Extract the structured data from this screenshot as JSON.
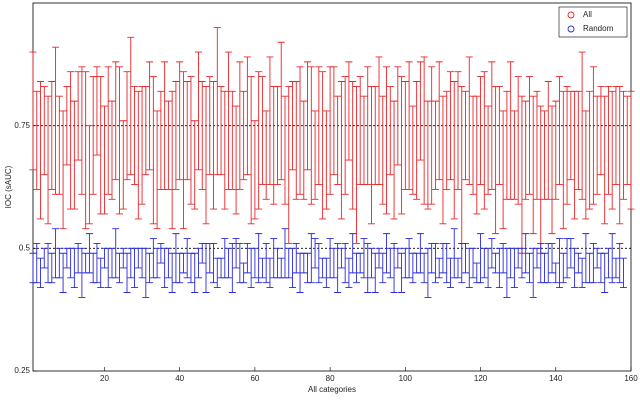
{
  "chart_data": {
    "type": "errorbar",
    "xlabel": "All categories",
    "ylabel": "IOC (sAUC)",
    "xlim": [
      1,
      160
    ],
    "ylim": [
      0.25,
      1
    ],
    "xticks": [
      20,
      40,
      60,
      80,
      100,
      120,
      140,
      160
    ],
    "yticks": [
      0.25,
      0.5,
      0.75
    ],
    "hlines": [
      0.5,
      0.75
    ],
    "legend": "northeast",
    "series": [
      {
        "name": "All",
        "color": "#e8262a",
        "values": [
          0.78,
          0.72,
          0.7,
          0.74,
          0.68,
          0.73,
          0.76,
          0.71,
          0.66,
          0.75,
          0.72,
          0.69,
          0.77,
          0.74,
          0.7,
          0.65,
          0.73,
          0.78,
          0.71,
          0.68,
          0.74,
          0.7,
          0.76,
          0.72,
          0.67,
          0.75,
          0.79,
          0.73,
          0.69,
          0.71,
          0.74,
          0.77,
          0.7,
          0.66,
          0.72,
          0.75,
          0.71,
          0.68,
          0.73,
          0.76,
          0.7,
          0.74,
          0.72,
          0.67,
          0.78,
          0.73,
          0.69,
          0.75,
          0.71,
          0.8,
          0.74,
          0.7,
          0.76,
          0.72,
          0.68,
          0.75,
          0.73,
          0.77,
          0.7,
          0.66,
          0.72,
          0.74,
          0.69,
          0.76,
          0.71,
          0.73,
          0.78,
          0.7,
          0.67,
          0.75,
          0.72,
          0.74,
          0.7,
          0.77,
          0.73,
          0.69,
          0.75,
          0.71,
          0.68,
          0.74,
          0.76,
          0.72,
          0.7,
          0.73,
          0.78,
          0.71,
          0.67,
          0.74,
          0.72,
          0.75,
          0.69,
          0.73,
          0.76,
          0.7,
          0.72,
          0.74,
          0.68,
          0.77,
          0.71,
          0.73,
          0.75,
          0.7,
          0.72,
          0.78,
          0.74,
          0.69,
          0.73,
          0.71,
          0.76,
          0.68,
          0.72,
          0.75,
          0.7,
          0.74,
          0.67,
          0.73,
          0.76,
          0.71,
          0.69,
          0.74,
          0.72,
          0.7,
          0.75,
          0.68,
          0.73,
          0.66,
          0.71,
          0.74,
          0.69,
          0.72,
          0.65,
          0.7,
          0.73,
          0.67,
          0.71,
          0.64,
          0.69,
          0.72,
          0.66,
          0.7,
          0.74,
          0.68,
          0.71,
          0.73,
          0.69,
          0.72,
          0.75,
          0.67,
          0.7,
          0.73,
          0.71,
          0.74,
          0.68,
          0.72,
          0.7,
          0.73,
          0.69,
          0.71,
          0.72,
          0.7
        ],
        "errors": [
          0.12,
          0.1,
          0.14,
          0.09,
          0.13,
          0.11,
          0.15,
          0.1,
          0.12,
          0.08,
          0.14,
          0.11,
          0.09,
          0.13,
          0.16,
          0.1,
          0.12,
          0.09,
          0.14,
          0.11,
          0.13,
          0.1,
          0.12,
          0.15,
          0.09,
          0.11,
          0.14,
          0.1,
          0.13,
          0.12,
          0.09,
          0.11,
          0.15,
          0.12,
          0.1,
          0.13,
          0.09,
          0.14,
          0.11,
          0.12,
          0.16,
          0.1,
          0.13,
          0.09,
          0.12,
          0.11,
          0.14,
          0.1,
          0.13,
          0.15,
          0.09,
          0.12,
          0.14,
          0.1,
          0.11,
          0.13,
          0.09,
          0.12,
          0.15,
          0.1,
          0.14,
          0.11,
          0.09,
          0.13,
          0.12,
          0.1,
          0.14,
          0.11,
          0.16,
          0.09,
          0.12,
          0.13,
          0.1,
          0.11,
          0.14,
          0.09,
          0.12,
          0.15,
          0.1,
          0.13,
          0.11,
          0.09,
          0.14,
          0.12,
          0.1,
          0.13,
          0.16,
          0.11,
          0.09,
          0.12,
          0.14,
          0.1,
          0.13,
          0.11,
          0.15,
          0.09,
          0.12,
          0.1,
          0.14,
          0.11,
          0.13,
          0.09,
          0.12,
          0.1,
          0.15,
          0.11,
          0.14,
          0.09,
          0.12,
          0.13,
          0.1,
          0.11,
          0.14,
          0.12,
          0.16,
          0.09,
          0.13,
          0.1,
          0.12,
          0.11,
          0.14,
          0.09,
          0.13,
          0.15,
          0.1,
          0.12,
          0.11,
          0.14,
          0.09,
          0.13,
          0.16,
          0.1,
          0.12,
          0.14,
          0.11,
          0.15,
          0.09,
          0.12,
          0.13,
          0.1,
          0.11,
          0.14,
          0.12,
          0.09,
          0.13,
          0.1,
          0.15,
          0.11,
          0.12,
          0.14,
          0.1,
          0.09,
          0.13,
          0.11,
          0.12,
          0.1,
          0.14,
          0.11,
          0.09,
          0.12
        ]
      },
      {
        "name": "Random",
        "color": "#2a2ad8",
        "values": [
          0.46,
          0.47,
          0.45,
          0.48,
          0.47,
          0.46,
          0.49,
          0.47,
          0.45,
          0.48,
          0.47,
          0.46,
          0.48,
          0.45,
          0.47,
          0.49,
          0.46,
          0.47,
          0.45,
          0.48,
          0.46,
          0.47,
          0.49,
          0.46,
          0.48,
          0.45,
          0.47,
          0.46,
          0.48,
          0.47,
          0.45,
          0.46,
          0.48,
          0.47,
          0.49,
          0.46,
          0.47,
          0.45,
          0.48,
          0.46,
          0.47,
          0.48,
          0.46,
          0.45,
          0.47,
          0.49,
          0.46,
          0.48,
          0.47,
          0.45,
          0.46,
          0.48,
          0.47,
          0.46,
          0.49,
          0.47,
          0.45,
          0.48,
          0.46,
          0.47,
          0.48,
          0.46,
          0.47,
          0.45,
          0.48,
          0.47,
          0.46,
          0.49,
          0.47,
          0.46,
          0.48,
          0.45,
          0.47,
          0.46,
          0.48,
          0.49,
          0.47,
          0.46,
          0.45,
          0.48,
          0.47,
          0.46,
          0.48,
          0.47,
          0.45,
          0.49,
          0.46,
          0.47,
          0.48,
          0.46,
          0.47,
          0.45,
          0.48,
          0.46,
          0.49,
          0.47,
          0.46,
          0.48,
          0.45,
          0.47,
          0.48,
          0.46,
          0.47,
          0.49,
          0.46,
          0.45,
          0.48,
          0.47,
          0.46,
          0.48,
          0.47,
          0.45,
          0.49,
          0.46,
          0.47,
          0.48,
          0.46,
          0.47,
          0.45,
          0.48,
          0.47,
          0.46,
          0.49,
          0.47,
          0.46,
          0.48,
          0.45,
          0.47,
          0.46,
          0.48,
          0.47,
          0.49,
          0.46,
          0.45,
          0.48,
          0.47,
          0.46,
          0.47,
          0.48,
          0.45,
          0.47,
          0.46,
          0.48,
          0.49,
          0.46,
          0.47,
          0.45,
          0.48,
          0.46,
          0.47,
          0.48,
          0.46,
          0.45,
          0.47,
          0.48,
          0.46,
          0.47,
          0.45
        ],
        "errors": [
          0.03,
          0.04,
          0.03,
          0.02,
          0.04,
          0.03,
          0.05,
          0.03,
          0.04,
          0.02,
          0.03,
          0.04,
          0.03,
          0.05,
          0.02,
          0.04,
          0.03,
          0.04,
          0.03,
          0.02,
          0.04,
          0.03,
          0.05,
          0.03,
          0.02,
          0.04,
          0.03,
          0.04,
          0.02,
          0.03,
          0.05,
          0.03,
          0.04,
          0.03,
          0.02,
          0.04,
          0.03,
          0.04,
          0.05,
          0.03,
          0.02,
          0.04,
          0.03,
          0.04,
          0.03,
          0.02,
          0.05,
          0.03,
          0.04,
          0.03,
          0.02,
          0.04,
          0.03,
          0.05,
          0.03,
          0.04,
          0.02,
          0.03,
          0.04,
          0.03,
          0.05,
          0.02,
          0.04,
          0.03,
          0.04,
          0.03,
          0.02,
          0.05,
          0.03,
          0.04,
          0.03,
          0.04,
          0.02,
          0.03,
          0.05,
          0.03,
          0.04,
          0.02,
          0.03,
          0.04,
          0.03,
          0.05,
          0.02,
          0.04,
          0.03,
          0.04,
          0.03,
          0.02,
          0.04,
          0.05,
          0.03,
          0.04,
          0.02,
          0.03,
          0.04,
          0.03,
          0.05,
          0.02,
          0.04,
          0.03,
          0.04,
          0.03,
          0.02,
          0.04,
          0.03,
          0.05,
          0.03,
          0.04,
          0.02,
          0.03,
          0.04,
          0.03,
          0.05,
          0.02,
          0.04,
          0.03,
          0.04,
          0.03,
          0.02,
          0.05,
          0.03,
          0.04,
          0.03,
          0.02,
          0.04,
          0.03,
          0.05,
          0.03,
          0.04,
          0.02,
          0.03,
          0.04,
          0.03,
          0.05,
          0.02,
          0.04,
          0.03,
          0.04,
          0.03,
          0.02,
          0.05,
          0.03,
          0.04,
          0.03,
          0.04,
          0.02,
          0.03,
          0.05,
          0.03,
          0.04,
          0.02,
          0.03,
          0.04,
          0.03,
          0.05,
          0.02,
          0.04,
          0.03
        ]
      }
    ]
  }
}
